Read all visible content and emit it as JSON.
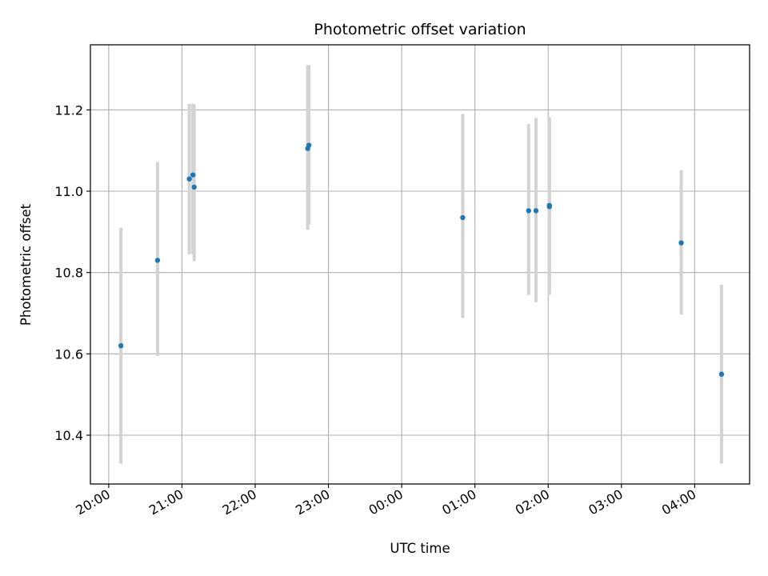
{
  "chart_data": {
    "type": "scatter",
    "title": "Photometric offset variation",
    "xlabel": "UTC time",
    "ylabel": "Photometric offset",
    "x_tick_labels": [
      "20:00",
      "21:00",
      "22:00",
      "23:00",
      "00:00",
      "01:00",
      "02:00",
      "03:00",
      "04:00"
    ],
    "y_tick_labels": [
      "10.4",
      "10.6",
      "10.8",
      "11.0",
      "11.2"
    ],
    "y_ticks": [
      10.4,
      10.6,
      10.8,
      11.0,
      11.2
    ],
    "xlim": [
      "19:45",
      "04:45"
    ],
    "ylim": [
      10.28,
      11.36
    ],
    "grid": true,
    "colors": {
      "point": "#1f77b4",
      "errorbar": "#d3d3d3",
      "grid": "#b0b0b0"
    },
    "series": [
      {
        "x": [
          "20:10",
          "20:40",
          "21:06",
          "21:09",
          "21:10",
          "22:43",
          "22:44",
          "00:50",
          "01:44",
          "01:50",
          "02:01",
          "02:01",
          "03:49",
          "04:22"
        ],
        "y": [
          10.62,
          10.83,
          11.03,
          11.04,
          11.01,
          11.105,
          11.113,
          10.935,
          10.952,
          10.952,
          10.962,
          10.965,
          10.873,
          10.55
        ],
        "yerr_low": [
          10.33,
          10.595,
          10.845,
          10.845,
          10.828,
          10.905,
          10.918,
          10.688,
          10.745,
          10.727,
          10.745,
          10.755,
          10.697,
          10.33
        ],
        "yerr_high": [
          10.91,
          11.072,
          11.215,
          11.215,
          11.213,
          11.31,
          11.31,
          11.19,
          11.165,
          11.18,
          11.182,
          11.175,
          11.052,
          10.77
        ]
      }
    ]
  }
}
